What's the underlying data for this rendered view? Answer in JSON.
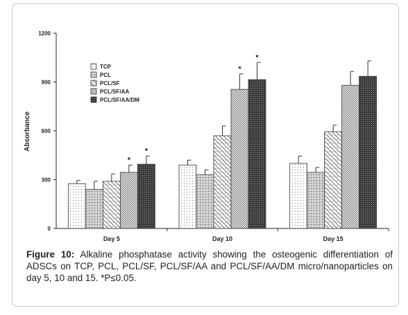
{
  "chart_data": {
    "type": "bar",
    "title": "",
    "xlabel": "",
    "ylabel": "Absorbance",
    "ylim": [
      0,
      1200
    ],
    "yticks": [
      "0",
      "300",
      "600",
      "900",
      "1200"
    ],
    "grid": false,
    "legend_position": "top-left",
    "categories": [
      "Day 5",
      "Day 10",
      "Day 15"
    ],
    "series": [
      {
        "name": "TCP",
        "pattern": "dots",
        "values": [
          275,
          390,
          400
        ],
        "errors": [
          20,
          30,
          45
        ]
      },
      {
        "name": "PCL",
        "pattern": "grid",
        "values": [
          240,
          330,
          345
        ],
        "errors": [
          50,
          30,
          30
        ]
      },
      {
        "name": "PCL/SF",
        "pattern": "brick",
        "values": [
          290,
          570,
          595
        ],
        "errors": [
          45,
          60,
          40
        ]
      },
      {
        "name": "PCL/SF/AA",
        "pattern": "diagonal",
        "values": [
          345,
          855,
          880
        ],
        "errors": [
          45,
          95,
          85
        ]
      },
      {
        "name": "PCL/SF/AA/DM",
        "pattern": "dark-dots",
        "values": [
          395,
          915,
          935
        ],
        "errors": [
          50,
          105,
          95
        ]
      }
    ],
    "significance": [
      {
        "category": "Day 5",
        "series": "PCL/SF/AA",
        "mark": "*"
      },
      {
        "category": "Day 5",
        "series": "PCL/SF/AA/DM",
        "mark": "*"
      },
      {
        "category": "Day 10",
        "series": "PCL/SF/AA",
        "mark": "*"
      },
      {
        "category": "Day 10",
        "series": "PCL/SF/AA/DM",
        "mark": "*"
      }
    ]
  },
  "caption": {
    "label": "Figure 10:",
    "text": " Alkaline phosphatase activity showing the osteogenic differentiation of ADSCs on TCP, PCL, PCL/SF, PCL/SF/AA and PCL/SF/AA/DM micro/nanoparticles on day 5, 10 and 15. *P≤0.05."
  }
}
